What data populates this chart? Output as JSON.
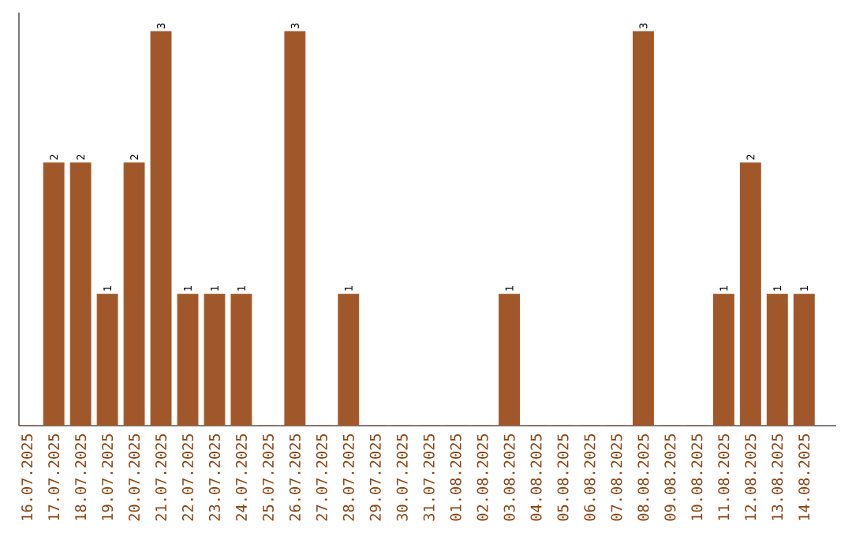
{
  "chart_data": {
    "type": "bar",
    "categories": [
      "16.07.2025",
      "17.07.2025",
      "18.07.2025",
      "19.07.2025",
      "20.07.2025",
      "21.07.2025",
      "22.07.2025",
      "23.07.2025",
      "24.07.2025",
      "25.07.2025",
      "26.07.2025",
      "27.07.2025",
      "28.07.2025",
      "29.07.2025",
      "30.07.2025",
      "31.07.2025",
      "01.08.2025",
      "02.08.2025",
      "03.08.2025",
      "04.08.2025",
      "05.08.2025",
      "06.08.2025",
      "07.08.2025",
      "08.08.2025",
      "09.08.2025",
      "10.08.2025",
      "11.08.2025",
      "12.08.2025",
      "13.08.2025",
      "14.08.2025"
    ],
    "values": [
      0,
      2,
      2,
      1,
      2,
      3,
      1,
      1,
      1,
      0,
      3,
      0,
      1,
      0,
      0,
      0,
      0,
      0,
      1,
      0,
      0,
      0,
      0,
      3,
      0,
      0,
      1,
      2,
      1,
      1
    ],
    "value_labels": [
      null,
      "2",
      "2",
      "1",
      "2",
      "3",
      "1",
      "1",
      "1",
      null,
      "3",
      null,
      "1",
      null,
      null,
      null,
      null,
      null,
      "1",
      null,
      null,
      null,
      null,
      "3",
      null,
      null,
      "1",
      "2",
      "1",
      "1"
    ],
    "color": "#a0582a",
    "tick_labels": "x"
  }
}
